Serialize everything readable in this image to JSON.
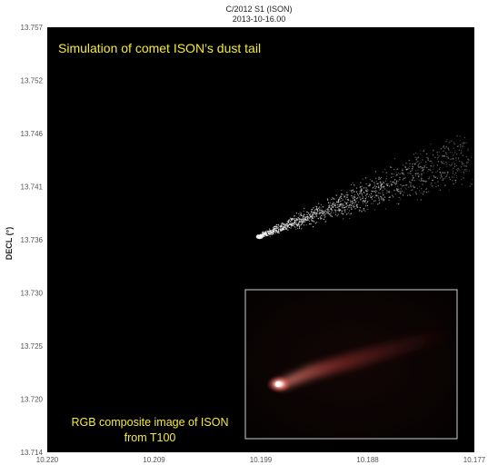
{
  "chart_data": {
    "type": "scatter",
    "title": "C/2012 S1 (ISON)",
    "subtitle": "2013-10-16.00",
    "xlabel": "",
    "ylabel": "DECL (°)",
    "x_ticks": [
      "10.220",
      "10.209",
      "10.199",
      "10.188",
      "10.177"
    ],
    "y_ticks": [
      "13.757",
      "13.752",
      "13.746",
      "13.741",
      "13.736",
      "13.730",
      "13.725",
      "13.720",
      "13.714"
    ],
    "xlim": [
      10.22,
      10.177
    ],
    "ylim": [
      13.714,
      13.757
    ],
    "grid": false,
    "background": "#000000",
    "series": [
      {
        "name": "",
        "nucleus": {
          "x": 10.1988,
          "y": 13.7358
        },
        "tail_end": {
          "x": 10.177,
          "y": 13.7432
        },
        "color": "#e8e8e8"
      }
    ],
    "annotations": [
      "Simulation of comet ISON’s dust tail",
      "RGB composite image of ISON",
      "from T100"
    ]
  },
  "inset": {
    "border_color": "#d0d0d0",
    "glow_color": "#d85050"
  }
}
